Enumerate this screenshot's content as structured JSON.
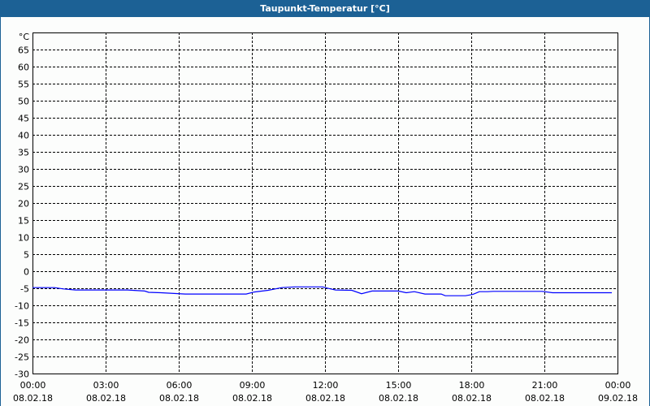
{
  "window": {
    "title": "Taupunkt-Temperatur [°C]"
  },
  "chart_data": {
    "type": "line",
    "title": "Taupunkt-Temperatur [°C]",
    "ylabel": "°C",
    "ylim": [
      -30,
      70
    ],
    "yticks": [
      65,
      60,
      55,
      50,
      45,
      40,
      35,
      30,
      25,
      20,
      15,
      10,
      5,
      0,
      -5,
      -10,
      -15,
      -20,
      -25,
      -30
    ],
    "xlim": [
      "08.02.18 00:00",
      "09.02.18 00:00"
    ],
    "xticks": [
      {
        "time": "00:00",
        "date": "08.02.18"
      },
      {
        "time": "03:00",
        "date": "08.02.18"
      },
      {
        "time": "06:00",
        "date": "08.02.18"
      },
      {
        "time": "09:00",
        "date": "08.02.18"
      },
      {
        "time": "12:00",
        "date": "08.02.18"
      },
      {
        "time": "15:00",
        "date": "08.02.18"
      },
      {
        "time": "18:00",
        "date": "08.02.18"
      },
      {
        "time": "21:00",
        "date": "08.02.18"
      },
      {
        "time": "00:00",
        "date": "09.02.18"
      }
    ],
    "grid": true,
    "line_color": "#0000ff",
    "series": [
      {
        "x": [
          "00:00",
          "00:54",
          "01:16",
          "01:46",
          "03:54",
          "04:36",
          "04:46",
          "05:16",
          "06:16",
          "08:46",
          "09:06",
          "09:40",
          "10:14",
          "10:46",
          "11:54",
          "12:00",
          "12:14",
          "12:26",
          "13:06",
          "13:30",
          "13:56",
          "15:00",
          "15:20",
          "15:40",
          "16:06",
          "16:46",
          "16:56",
          "17:46",
          "18:04",
          "18:20",
          "18:40",
          "18:54",
          "20:54",
          "21:20",
          "23:46"
        ],
        "y": [
          -4.8,
          -4.8,
          -5.2,
          -5.5,
          -5.5,
          -5.8,
          -6.2,
          -6.3,
          -6.7,
          -6.7,
          -6.1,
          -5.6,
          -4.8,
          -4.6,
          -4.6,
          -4.8,
          -5.2,
          -5.5,
          -5.6,
          -6.6,
          -5.8,
          -5.8,
          -6.3,
          -6.0,
          -6.7,
          -6.7,
          -7.2,
          -7.2,
          -6.8,
          -6.0,
          -6.0,
          -5.9,
          -5.9,
          -6.3,
          -6.3
        ]
      }
    ]
  }
}
